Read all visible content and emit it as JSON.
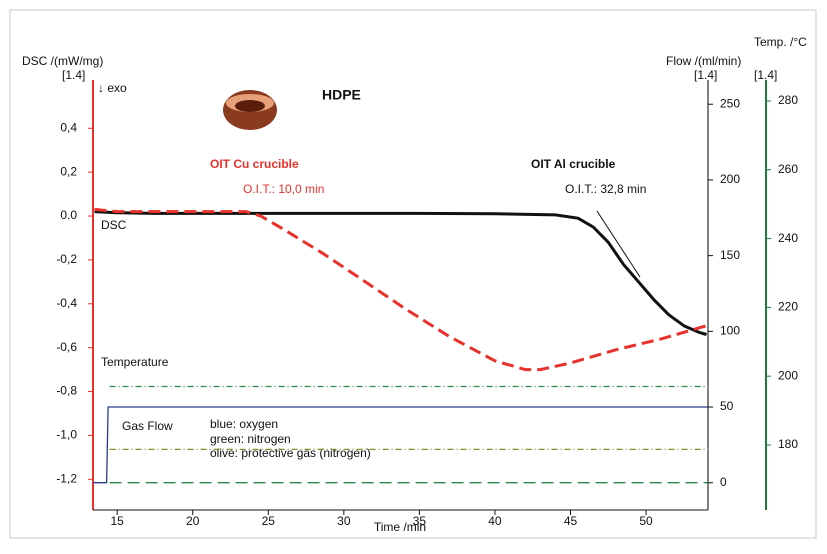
{
  "chart_data": {
    "type": "line",
    "xlabel": "Time /min",
    "ylabel": "DSC /(mW/mg)",
    "y2label": "Flow /(ml/min)",
    "y3label": "Temp. /°C",
    "xlim": [
      13.4,
      54.1
    ],
    "xticks": [
      15,
      20,
      25,
      30,
      35,
      40,
      45,
      50
    ],
    "ylim": [
      -1.34,
      0.62
    ],
    "yticks": [
      {
        "value": 0.4,
        "label": "0,4"
      },
      {
        "value": 0.2,
        "label": "0,2"
      },
      {
        "value": 0,
        "label": "0.0"
      },
      {
        "value": -0.2,
        "label": "-0,2"
      },
      {
        "value": -0.4,
        "label": "-0,4"
      },
      {
        "value": -0.6,
        "label": "-0,6"
      },
      {
        "value": -0.8,
        "label": "-0,8"
      },
      {
        "value": -1.0,
        "label": "-1,0"
      },
      {
        "value": -1.2,
        "label": "-1,2"
      }
    ],
    "y2lim": [
      -18,
      266
    ],
    "y2ticks": [
      0,
      50,
      100,
      150,
      200,
      250
    ],
    "y3lim": [
      161.1,
      286.1
    ],
    "y3ticks": [
      180,
      200,
      220,
      240,
      260,
      280
    ],
    "axis_colors": {
      "y": "#e8312a",
      "y2": "#000000",
      "y3": "#1f7a3c"
    },
    "series": [
      {
        "color": "#111111",
        "dash": "solid",
        "width": 3,
        "axis": "y",
        "x": [
          13.5,
          15,
          17.4,
          20,
          23.8,
          30,
          35,
          40,
          44,
          45.5,
          46.5,
          47.5,
          48.5,
          49.5,
          50.5,
          51.5,
          52.5,
          53.5,
          54
        ],
        "values": [
          0.02,
          0.015,
          0.012,
          0.012,
          0.012,
          0.012,
          0.012,
          0.01,
          0.005,
          -0.01,
          -0.05,
          -0.12,
          -0.22,
          -0.3,
          -0.38,
          -0.45,
          -0.5,
          -0.53,
          -0.54
        ]
      },
      {
        "color": "#e8312a",
        "dash": "dashed",
        "width": 3,
        "axis": "y",
        "x": [
          13.5,
          15,
          17,
          20,
          23.5,
          24.5,
          26,
          28.6,
          31,
          34,
          37,
          40,
          42,
          43,
          45,
          48,
          51,
          54
        ],
        "values": [
          0.03,
          0.02,
          0.02,
          0.02,
          0.02,
          0,
          -0.06,
          -0.17,
          -0.28,
          -0.42,
          -0.55,
          -0.66,
          -0.7,
          -0.7,
          -0.67,
          -0.61,
          -0.56,
          -0.5
        ]
      },
      {
        "color": "#2b3a8f",
        "dash": "solid",
        "width": 1.3,
        "axis": "y2",
        "x": [
          13.4,
          14.3,
          14.4,
          54.1
        ],
        "values": [
          0,
          0,
          50,
          50
        ]
      },
      {
        "color": "#2a8a4a",
        "dash": "dashed",
        "width": 1.3,
        "axis": "y2",
        "x": [
          14.5,
          54.1
        ],
        "values": [
          0,
          0
        ]
      },
      {
        "color": "#8a8a2a",
        "dash": "dashdot",
        "width": 1.3,
        "axis": "y2",
        "x": [
          14.5,
          54.1
        ],
        "values": [
          22,
          22
        ]
      },
      {
        "color": "#2a8a4a",
        "dash": "dashdot",
        "width": 1.3,
        "axis": "y3",
        "x": [
          14.5,
          54.1
        ],
        "values": [
          197,
          197
        ]
      }
    ],
    "annotations": [
      "[1.4]",
      "↓ exo",
      "HDPE",
      "OIT Cu crucible",
      "O.I.T.: 10,0 min",
      "OIT Al crucible",
      "O.I.T.: 32,8 min",
      "DSC",
      "Temperature",
      "Gas Flow",
      "blue: oxygen",
      "green: nitrogen",
      "olive: protective gas (nitrogen)",
      "Flow /(ml/min)",
      "[1.4]",
      "[1.4]"
    ]
  }
}
